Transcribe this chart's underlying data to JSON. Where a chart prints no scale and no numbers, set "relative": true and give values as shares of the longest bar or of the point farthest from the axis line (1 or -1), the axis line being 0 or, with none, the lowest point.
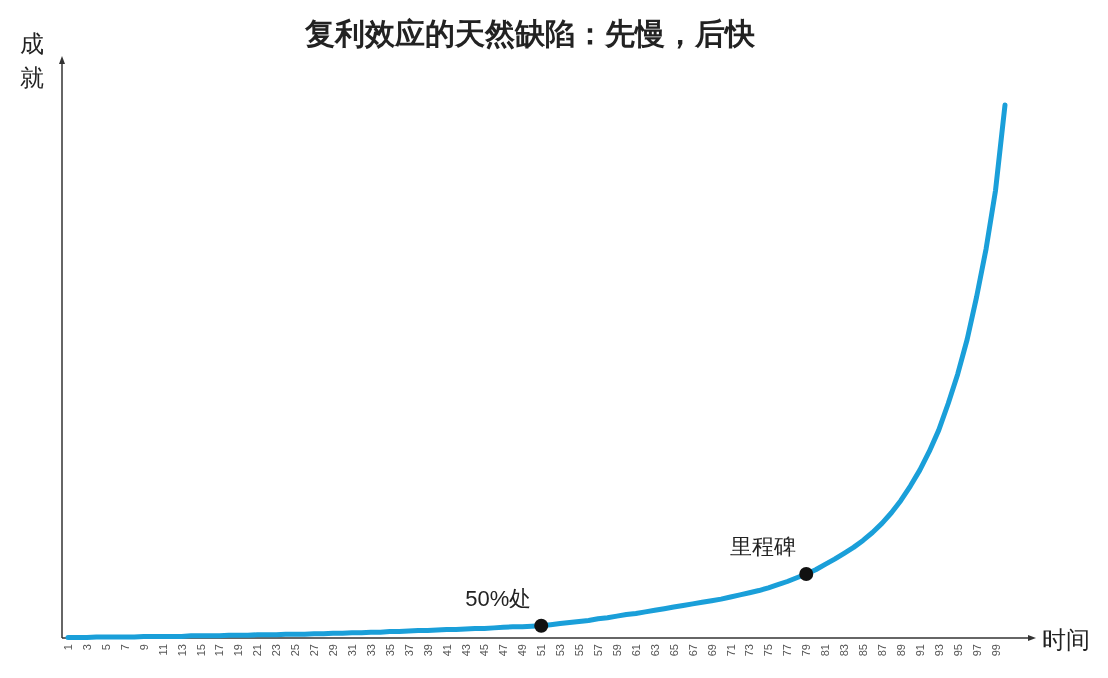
{
  "chart_data": {
    "type": "line",
    "title": "复利效应的天然缺陷：先慢，后快",
    "xlabel": "时间",
    "ylabel": "成就",
    "categories": [
      "1",
      null,
      "3",
      null,
      "5",
      null,
      "7",
      null,
      "9",
      null,
      "11",
      null,
      "13",
      null,
      "15",
      null,
      "17",
      null,
      "19",
      null,
      "21",
      null,
      "23",
      null,
      "25",
      null,
      "27",
      null,
      "29",
      null,
      "31",
      null,
      "33",
      null,
      "35",
      null,
      "37",
      null,
      "39",
      null,
      "41",
      null,
      "43",
      null,
      "45",
      null,
      "47",
      null,
      "49",
      null,
      "51",
      null,
      "53",
      null,
      "55",
      null,
      "57",
      null,
      "59",
      null,
      "61",
      null,
      "63",
      null,
      "65",
      null,
      "67",
      null,
      "69",
      null,
      "71",
      null,
      "73",
      null,
      "75",
      null,
      "77",
      null,
      "79",
      null,
      "81",
      null,
      "83",
      null,
      "85",
      null,
      "87",
      null,
      "89",
      null,
      "91",
      null,
      "93",
      null,
      "95",
      null,
      "97",
      null,
      "99",
      null
    ],
    "series": [
      {
        "color": "#1a9fd9",
        "values": [
          0.001,
          0.001,
          0.001,
          0.002,
          0.002,
          0.002,
          0.002,
          0.002,
          0.003,
          0.003,
          0.003,
          0.003,
          0.003,
          0.004,
          0.004,
          0.004,
          0.004,
          0.005,
          0.005,
          0.005,
          0.006,
          0.006,
          0.006,
          0.007,
          0.007,
          0.007,
          0.008,
          0.008,
          0.009,
          0.009,
          0.01,
          0.01,
          0.011,
          0.011,
          0.012,
          0.012,
          0.013,
          0.014,
          0.014,
          0.015,
          0.016,
          0.016,
          0.017,
          0.018,
          0.018,
          0.019,
          0.02,
          0.021,
          0.021,
          0.022,
          0.023,
          0.025,
          0.027,
          0.029,
          0.031,
          0.033,
          0.036,
          0.038,
          0.041,
          0.044,
          0.046,
          0.049,
          0.052,
          0.055,
          0.058,
          0.061,
          0.064,
          0.067,
          0.07,
          0.073,
          0.077,
          0.081,
          0.085,
          0.089,
          0.094,
          0.1,
          0.106,
          0.113,
          0.12,
          0.128,
          0.138,
          0.148,
          0.159,
          0.17,
          0.183,
          0.198,
          0.215,
          0.235,
          0.258,
          0.285,
          0.315,
          0.35,
          0.39,
          0.44,
          0.495,
          0.56,
          0.64,
          0.73,
          0.84,
          1.0
        ]
      }
    ],
    "relative": true,
    "tick_labels": "x",
    "annotations": [
      {
        "text": "50%处",
        "x": "51",
        "y": 0.023
      },
      {
        "text": "里程碑",
        "x": "79",
        "y": 0.12
      }
    ]
  }
}
